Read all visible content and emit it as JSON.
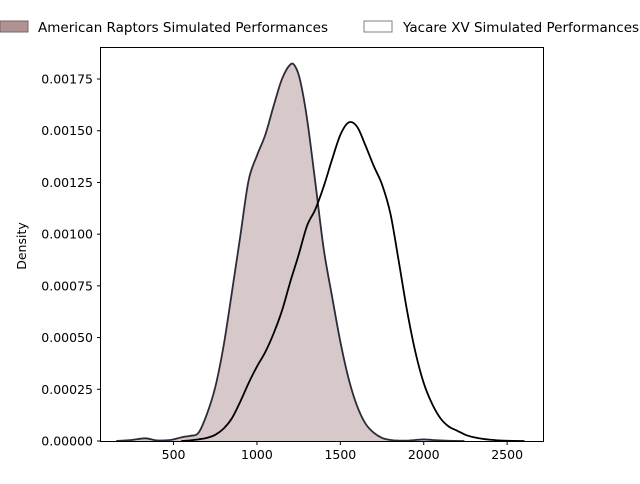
{
  "chart_data": {
    "type": "area",
    "title": "",
    "xlabel": "",
    "ylabel": "Density",
    "xlim": [
      65,
      2715
    ],
    "ylim": [
      0,
      0.0019
    ],
    "x_ticks": [
      500,
      1000,
      1500,
      2000,
      2500
    ],
    "x_tick_labels": [
      "500",
      "1000",
      "1500",
      "2000",
      "2500"
    ],
    "y_ticks": [
      0,
      0.00025,
      0.0005,
      0.00075,
      0.001,
      0.00125,
      0.0015,
      0.00175
    ],
    "y_tick_labels": [
      "0.00000",
      "0.00025",
      "0.00050",
      "0.00075",
      "0.00100",
      "0.00125",
      "0.00150",
      "0.00175"
    ],
    "grid": false,
    "legend": {
      "placement": "top-center-outside",
      "entries": [
        {
          "label": "American Raptors Simulated Performances",
          "fill": "#b09293",
          "fill_opacity": 0.5,
          "stroke": "#2b2b3a"
        },
        {
          "label": "Yacare XV Simulated Performances",
          "fill": "#ffffff",
          "fill_opacity": 0,
          "stroke": "#000000"
        }
      ]
    },
    "series": [
      {
        "name": "American Raptors Simulated Performances",
        "filled": true,
        "color": "#b09293",
        "edge_color": "#2b2b3a",
        "x": [
          160,
          250,
          330,
          400,
          480,
          520,
          560,
          600,
          650,
          700,
          750,
          800,
          850,
          900,
          950,
          1000,
          1050,
          1100,
          1150,
          1200,
          1230,
          1260,
          1300,
          1350,
          1400,
          1450,
          1500,
          1550,
          1600,
          1650,
          1700,
          1750,
          1800,
          1850,
          1900,
          1950,
          2000,
          2050,
          2100,
          2150,
          2240
        ],
        "y": [
          0,
          5e-06,
          1.3e-05,
          3e-06,
          5e-06,
          1.2e-05,
          2e-05,
          2.5e-05,
          4e-05,
          0.00013,
          0.00026,
          0.00046,
          0.00072,
          0.00099,
          0.00126,
          0.00138,
          0.00148,
          0.00162,
          0.00175,
          0.00182,
          0.00181,
          0.00174,
          0.00156,
          0.00125,
          0.00093,
          0.0007,
          0.00048,
          0.0003,
          0.00017,
          8.5e-05,
          4e-05,
          1.5e-05,
          5e-06,
          2e-06,
          2e-06,
          5e-06,
          8e-06,
          5e-06,
          3e-06,
          1e-06,
          0
        ]
      },
      {
        "name": "Yacare XV Simulated Performances",
        "filled": false,
        "color": "#000000",
        "edge_color": "#000000",
        "x": [
          550,
          600,
          650,
          700,
          750,
          800,
          850,
          900,
          950,
          1000,
          1050,
          1100,
          1150,
          1200,
          1250,
          1300,
          1350,
          1400,
          1450,
          1500,
          1550,
          1600,
          1650,
          1700,
          1750,
          1800,
          1850,
          1900,
          1950,
          2000,
          2050,
          2100,
          2150,
          2200,
          2250,
          2300,
          2350,
          2400,
          2450,
          2500,
          2600
        ],
        "y": [
          0,
          3e-06,
          8e-06,
          1.5e-05,
          3e-05,
          6e-05,
          0.00011,
          0.00019,
          0.00028,
          0.00036,
          0.00043,
          0.00052,
          0.00063,
          0.00077,
          0.0009,
          0.00104,
          0.00112,
          0.00123,
          0.00136,
          0.00148,
          0.00154,
          0.00152,
          0.00143,
          0.00133,
          0.00124,
          0.0011,
          0.00087,
          0.00063,
          0.00043,
          0.00028,
          0.00018,
          0.00011,
          7e-05,
          5e-05,
          3e-05,
          1.8e-05,
          1.1e-05,
          6e-06,
          3e-06,
          1e-06,
          0
        ]
      }
    ]
  }
}
